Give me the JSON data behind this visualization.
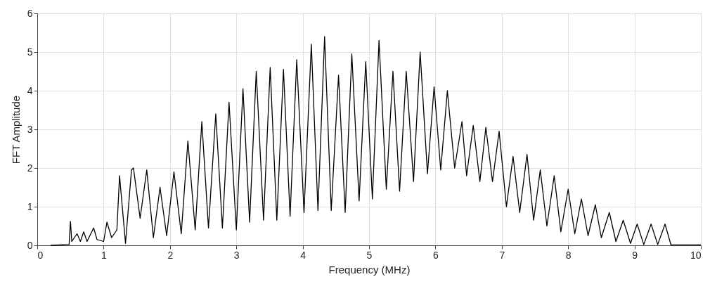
{
  "chart_data": {
    "type": "line",
    "xlabel": "Frequency (MHz)",
    "ylabel": "FFT Amplitude",
    "xlim": [
      0,
      10
    ],
    "ylim": [
      0,
      6
    ],
    "xticks": [
      0,
      1,
      2,
      3,
      4,
      5,
      6,
      7,
      8,
      9,
      10
    ],
    "yticks": [
      0,
      1,
      2,
      3,
      4,
      5,
      6
    ],
    "grid": true,
    "line_style": "solid",
    "x": [
      0.2,
      0.48,
      0.5,
      0.52,
      0.6,
      0.65,
      0.7,
      0.75,
      0.85,
      0.9,
      1.0,
      1.05,
      1.12,
      1.2,
      1.24,
      1.33,
      1.42,
      1.45,
      1.55,
      1.65,
      1.75,
      1.85,
      1.95,
      2.06,
      2.17,
      2.27,
      2.38,
      2.48,
      2.58,
      2.69,
      2.79,
      2.89,
      3.0,
      3.1,
      3.2,
      3.3,
      3.41,
      3.51,
      3.61,
      3.71,
      3.81,
      3.91,
      4.02,
      4.13,
      4.23,
      4.33,
      4.43,
      4.54,
      4.64,
      4.74,
      4.85,
      4.95,
      5.05,
      5.15,
      5.26,
      5.36,
      5.46,
      5.56,
      5.67,
      5.77,
      5.88,
      5.98,
      6.08,
      6.18,
      6.29,
      6.4,
      6.47,
      6.57,
      6.67,
      6.76,
      6.86,
      6.96,
      7.07,
      7.17,
      7.27,
      7.38,
      7.48,
      7.58,
      7.68,
      7.79,
      7.89,
      8.0,
      8.1,
      8.2,
      8.3,
      8.41,
      8.5,
      8.62,
      8.72,
      8.83,
      8.94,
      9.04,
      9.14,
      9.25,
      9.35,
      9.46,
      9.55,
      10.0
    ],
    "series": [
      {
        "color": "#000000",
        "values": [
          0,
          0.02,
          0.62,
          0.1,
          0.3,
          0.1,
          0.35,
          0.1,
          0.45,
          0.15,
          0.1,
          0.6,
          0.2,
          0.4,
          1.8,
          0.05,
          1.95,
          2.0,
          0.7,
          1.95,
          0.2,
          1.5,
          0.25,
          1.9,
          0.3,
          2.7,
          0.4,
          3.2,
          0.45,
          3.4,
          0.45,
          3.7,
          0.4,
          4.05,
          0.6,
          4.5,
          0.65,
          4.6,
          0.65,
          4.55,
          0.75,
          4.8,
          0.85,
          5.2,
          0.9,
          5.4,
          0.9,
          4.4,
          0.85,
          4.95,
          1.15,
          4.75,
          1.2,
          5.3,
          1.45,
          4.5,
          1.4,
          4.5,
          1.65,
          5.0,
          1.85,
          4.1,
          1.95,
          4.0,
          2.0,
          3.2,
          1.8,
          3.1,
          1.65,
          3.05,
          1.65,
          2.95,
          1.0,
          2.3,
          0.85,
          2.35,
          0.65,
          1.95,
          0.5,
          1.8,
          0.35,
          1.45,
          0.3,
          1.2,
          0.25,
          1.05,
          0.2,
          0.85,
          0.1,
          0.65,
          0.05,
          0.55,
          0.02,
          0.55,
          0.02,
          0.55,
          0.01,
          0.01
        ]
      }
    ]
  }
}
